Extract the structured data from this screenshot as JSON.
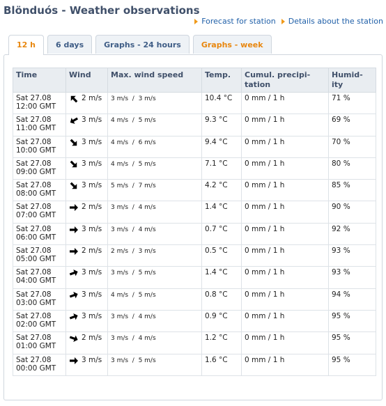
{
  "page": {
    "title": "Blönduós - Weather observations"
  },
  "links": [
    {
      "label": "Forecast for station"
    },
    {
      "label": "Details about the station"
    }
  ],
  "tabs": [
    {
      "label": "12 h",
      "active": true
    },
    {
      "label": "6 days"
    },
    {
      "label": "Graphs - 24 hours"
    },
    {
      "label": "Graphs - week"
    }
  ],
  "table": {
    "headers": {
      "time": "Time",
      "wind": "Wind",
      "max": "Max. wind speed",
      "temp": "Temp.",
      "precip_line1": "Cumul. precipi-",
      "precip_line2": "tation",
      "humid_line1": "Humid-",
      "humid_line2": "ity"
    },
    "rows": [
      {
        "date": "Sat 27.08",
        "time": "12:00 GMT",
        "dir": 315,
        "wind": "2 m/s",
        "mw1": "3 m/s",
        "mw2": "3 m/s",
        "temp": "10.4 °C",
        "precip": "0 mm / 1 h",
        "humid": "71 %"
      },
      {
        "date": "Sat 27.08",
        "time": "11:00 GMT",
        "dir": 240,
        "wind": "3 m/s",
        "mw1": "4 m/s",
        "mw2": "5 m/s",
        "temp": "9.3 °C",
        "precip": "0 mm / 1 h",
        "humid": "69 %"
      },
      {
        "date": "Sat 27.08",
        "time": "10:00 GMT",
        "dir": 135,
        "wind": "3 m/s",
        "mw1": "4 m/s",
        "mw2": "6 m/s",
        "temp": "9.4 °C",
        "precip": "0 mm / 1 h",
        "humid": "70 %"
      },
      {
        "date": "Sat 27.08",
        "time": "09:00 GMT",
        "dir": 135,
        "wind": "3 m/s",
        "mw1": "4 m/s",
        "mw2": "5 m/s",
        "temp": "7.1 °C",
        "precip": "0 mm / 1 h",
        "humid": "80 %"
      },
      {
        "date": "Sat 27.08",
        "time": "08:00 GMT",
        "dir": 135,
        "wind": "3 m/s",
        "mw1": "5 m/s",
        "mw2": "7 m/s",
        "temp": "4.2 °C",
        "precip": "0 mm / 1 h",
        "humid": "85 %"
      },
      {
        "date": "Sat 27.08",
        "time": "07:00 GMT",
        "dir": 90,
        "wind": "2 m/s",
        "mw1": "3 m/s",
        "mw2": "4 m/s",
        "temp": "1.4 °C",
        "precip": "0 mm / 1 h",
        "humid": "90 %"
      },
      {
        "date": "Sat 27.08",
        "time": "06:00 GMT",
        "dir": 90,
        "wind": "3 m/s",
        "mw1": "3 m/s",
        "mw2": "4 m/s",
        "temp": "0.7 °C",
        "precip": "0 mm / 1 h",
        "humid": "92 %"
      },
      {
        "date": "Sat 27.08",
        "time": "05:00 GMT",
        "dir": 90,
        "wind": "2 m/s",
        "mw1": "2 m/s",
        "mw2": "3 m/s",
        "temp": "0.5 °C",
        "precip": "0 mm / 1 h",
        "humid": "93 %"
      },
      {
        "date": "Sat 27.08",
        "time": "04:00 GMT",
        "dir": 70,
        "wind": "3 m/s",
        "mw1": "3 m/s",
        "mw2": "5 m/s",
        "temp": "1.4 °C",
        "precip": "0 mm / 1 h",
        "humid": "93 %"
      },
      {
        "date": "Sat 27.08",
        "time": "03:00 GMT",
        "dir": 70,
        "wind": "3 m/s",
        "mw1": "4 m/s",
        "mw2": "5 m/s",
        "temp": "0.8 °C",
        "precip": "0 mm / 1 h",
        "humid": "94 %"
      },
      {
        "date": "Sat 27.08",
        "time": "02:00 GMT",
        "dir": 70,
        "wind": "3 m/s",
        "mw1": "3 m/s",
        "mw2": "4 m/s",
        "temp": "0.9 °C",
        "precip": "0 mm / 1 h",
        "humid": "95 %"
      },
      {
        "date": "Sat 27.08",
        "time": "01:00 GMT",
        "dir": 110,
        "wind": "2 m/s",
        "mw1": "3 m/s",
        "mw2": "4 m/s",
        "temp": "1.2 °C",
        "precip": "0 mm / 1 h",
        "humid": "95 %"
      },
      {
        "date": "Sat 27.08",
        "time": "00:00 GMT",
        "dir": 90,
        "wind": "3 m/s",
        "mw1": "3 m/s",
        "mw2": "5 m/s",
        "temp": "1.6 °C",
        "precip": "0 mm / 1 h",
        "humid": "95 %"
      }
    ]
  },
  "colors": {
    "title": "#40506a",
    "link": "#1f5fa8",
    "accent": "#e8870f",
    "temp": "#c0392b"
  }
}
